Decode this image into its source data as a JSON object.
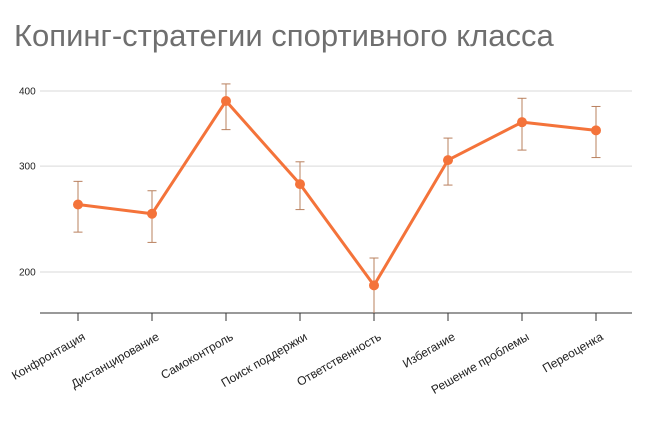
{
  "chart_data": {
    "type": "line",
    "title": "Копинг-стратегии спортивного класса",
    "xlabel": "",
    "ylabel": "",
    "scale": "log",
    "ylim": [
      160,
      460
    ],
    "yticks": [
      200,
      300,
      400
    ],
    "grid": true,
    "legend": "none",
    "categories": [
      "Конфронтация",
      "Дистанцирование",
      "Самоконтроль",
      "Поиск поддержки",
      "Ответственность",
      "Избегание",
      "Решение проблемы",
      "Переоценка"
    ],
    "series": [
      {
        "values": [
          259,
          250,
          385,
          280,
          190,
          307,
          355,
          344
        ],
        "err_low": [
          233,
          224,
          345,
          254,
          163,
          279,
          319,
          310
        ],
        "err_high": [
          283,
          273,
          411,
          305,
          211,
          334,
          389,
          377
        ]
      }
    ]
  },
  "colors": {
    "line": "#f4733a",
    "errorbar": "#b9805e",
    "grid": "#d9d9d9",
    "axis": "#333333"
  }
}
